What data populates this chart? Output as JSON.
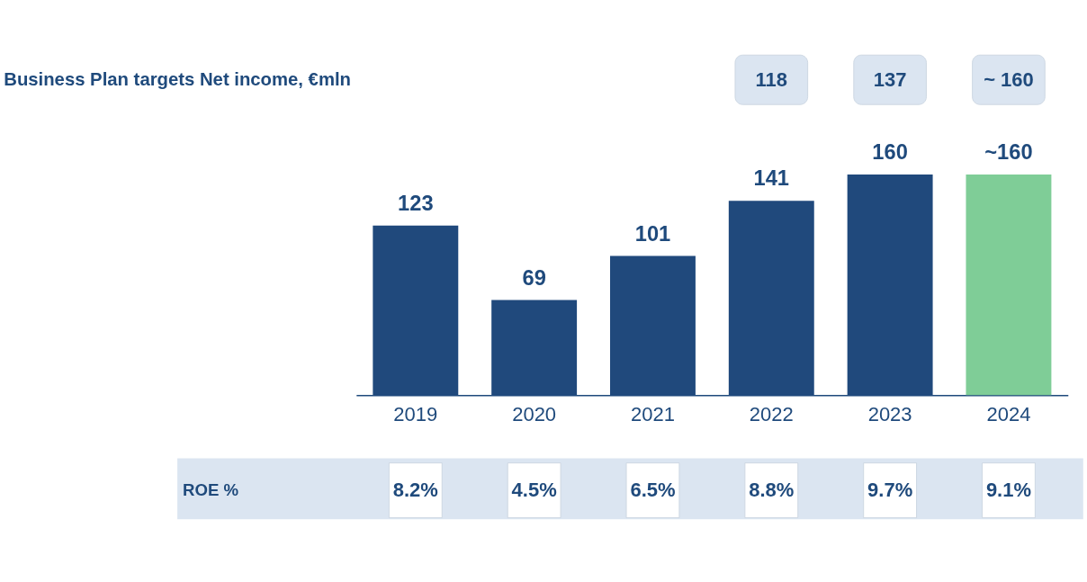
{
  "chart_data": {
    "type": "bar",
    "title": "Business Plan targets Net income, €mln",
    "categories": [
      "2019",
      "2020",
      "2021",
      "2022",
      "2023",
      "2024"
    ],
    "values": [
      123,
      69,
      101,
      141,
      160,
      160
    ],
    "colors": [
      "#20497c",
      "#20497c",
      "#20497c",
      "#20497c",
      "#20497c",
      "#7fcd97"
    ],
    "value_labels": [
      "123",
      "69",
      "101",
      "141",
      "160",
      "~160"
    ],
    "annotations": [
      "118",
      "137",
      "~ 160",
      "ROE %",
      "8.2%",
      "4.5%",
      "6.5%",
      "8.8%",
      "9.7%",
      "9.1%"
    ]
  }
}
